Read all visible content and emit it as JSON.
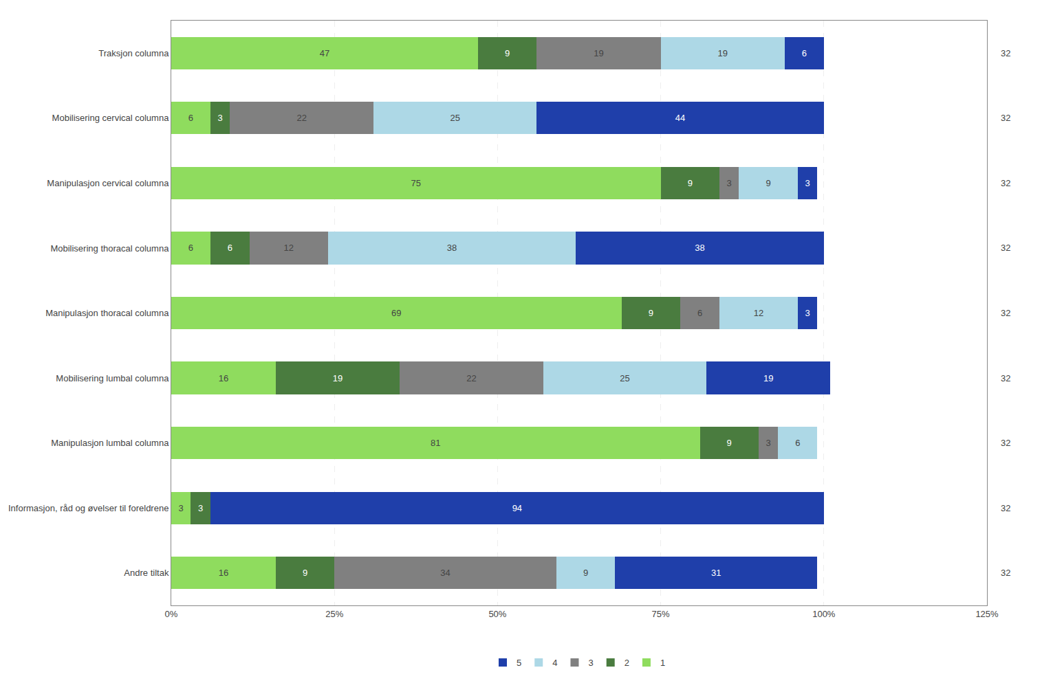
{
  "chart_data": {
    "type": "bar",
    "orientation": "horizontal",
    "stacked": true,
    "data_labels": true,
    "grid": true,
    "legend": "bottom",
    "categories": [
      "Traksjon columna",
      "Mobilisering cervical columna",
      "Manipulasjon cervical columna",
      "Mobilisering thoracal columna",
      "Manipulasjon thoracal columna",
      "Mobilisering lumbal columna",
      "Manipulasjon lumbal columna",
      "Informasjon, råd og øvelser til foreldrene",
      "Andre tiltak"
    ],
    "series": [
      {
        "name": "1",
        "color": "#8fdc5e",
        "values": [
          47,
          6,
          75,
          6,
          69,
          16,
          81,
          3,
          16
        ]
      },
      {
        "name": "2",
        "color": "#4a7c3f",
        "values": [
          9,
          3,
          9,
          6,
          9,
          19,
          9,
          3,
          9
        ]
      },
      {
        "name": "3",
        "color": "#808080",
        "values": [
          19,
          22,
          3,
          12,
          6,
          22,
          3,
          0,
          34
        ]
      },
      {
        "name": "4",
        "color": "#add8e6",
        "values": [
          19,
          25,
          9,
          38,
          12,
          25,
          6,
          0,
          9
        ]
      },
      {
        "name": "5",
        "color": "#1f3faa",
        "values": [
          6,
          44,
          3,
          38,
          3,
          19,
          0,
          94,
          31
        ]
      }
    ],
    "xlim": [
      0,
      125
    ],
    "xticks": [
      {
        "value": 0,
        "label": "0%"
      },
      {
        "value": 25,
        "label": "25%"
      },
      {
        "value": 50,
        "label": "50%"
      },
      {
        "value": 75,
        "label": "75%"
      },
      {
        "value": 100,
        "label": "100%"
      },
      {
        "value": 125,
        "label": "125%"
      }
    ],
    "annotations": [
      {
        "category": "Traksjon columna",
        "text": "32"
      },
      {
        "category": "Mobilisering cervical columna",
        "text": "32"
      },
      {
        "category": "Manipulasjon cervical columna",
        "text": "32"
      },
      {
        "category": "Mobilisering thoracal columna",
        "text": "32"
      },
      {
        "category": "Manipulasjon thoracal columna",
        "text": "32"
      },
      {
        "category": "Mobilisering lumbal columna",
        "text": "32"
      },
      {
        "category": "Manipulasjon lumbal columna",
        "text": "32"
      },
      {
        "category": "Informasjon, råd og øvelser til foreldrene",
        "text": "32"
      },
      {
        "category": "Andre tiltak",
        "text": "32"
      }
    ]
  }
}
